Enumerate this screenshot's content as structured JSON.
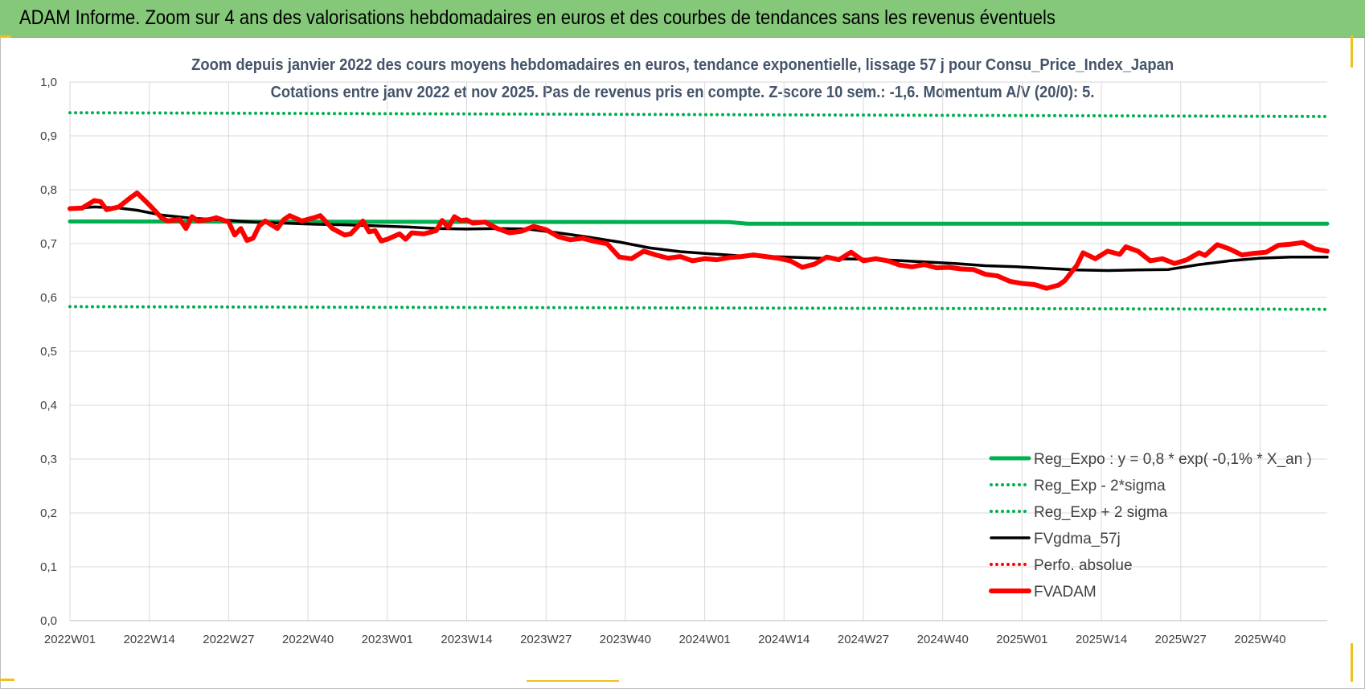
{
  "header": {
    "title": "ADAM Informe. Zoom sur 4 ans des valorisations hebdomadaires en euros et des courbes de tendances sans les revenus éventuels"
  },
  "chart_data": {
    "type": "line",
    "title": "Zoom depuis janvier 2022 des cours moyens hebdomadaires en euros, tendance exponentielle, lissage 57 j pour Consu_Price_Index_Japan",
    "subtitle": "Cotations entre janv 2022 et nov 2025. Pas de revenus pris en compte. Z-score 10 sem.: -1,6. Momentum A/V (20/0): 5.",
    "xlabel": "",
    "ylabel": "",
    "ylim": [
      0,
      1.0
    ],
    "grid": true,
    "legend_position": "right",
    "x_tick_labels": [
      "2022W01",
      "2022W14",
      "2022W27",
      "2022W40",
      "2023W01",
      "2023W14",
      "2023W27",
      "2023W40",
      "2024W01",
      "2024W14",
      "2024W27",
      "2024W40",
      "2025W01",
      "2025W14",
      "2025W27",
      "2025W40"
    ],
    "y_tick_labels": [
      "0,0",
      "0,1",
      "0,2",
      "0,3",
      "0,4",
      "0,5",
      "0,6",
      "0,7",
      "0,8",
      "0,9",
      "1,0"
    ],
    "x_weeks": 206,
    "series": [
      {
        "name": "Reg_Expo : y = 0,8 * exp( -0,1% *  X_an )",
        "color": "#00b050",
        "style": "solid-thick",
        "points": [
          [
            0,
            0.741
          ],
          [
            108,
            0.74
          ],
          [
            111,
            0.737
          ],
          [
            206,
            0.737
          ]
        ]
      },
      {
        "name": "Reg_Exp - 2*sigma",
        "color": "#00b050",
        "style": "dotted",
        "points": [
          [
            0,
            0.583
          ],
          [
            206,
            0.578
          ]
        ]
      },
      {
        "name": "Reg_Exp + 2 sigma",
        "color": "#00b050",
        "style": "dotted",
        "points": [
          [
            0,
            0.943
          ],
          [
            206,
            0.936
          ]
        ]
      },
      {
        "name": "FVgdma_57j",
        "color": "#000000",
        "style": "solid",
        "points": [
          [
            0,
            0.765
          ],
          [
            4,
            0.768
          ],
          [
            8,
            0.766
          ],
          [
            11,
            0.762
          ],
          [
            15,
            0.753
          ],
          [
            20,
            0.747
          ],
          [
            25,
            0.744
          ],
          [
            30,
            0.74
          ],
          [
            35,
            0.738
          ],
          [
            40,
            0.736
          ],
          [
            45,
            0.735
          ],
          [
            50,
            0.733
          ],
          [
            55,
            0.731
          ],
          [
            60,
            0.728
          ],
          [
            65,
            0.727
          ],
          [
            70,
            0.728
          ],
          [
            75,
            0.727
          ],
          [
            80,
            0.72
          ],
          [
            85,
            0.712
          ],
          [
            90,
            0.703
          ],
          [
            95,
            0.692
          ],
          [
            100,
            0.685
          ],
          [
            105,
            0.681
          ],
          [
            110,
            0.677
          ],
          [
            115,
            0.676
          ],
          [
            120,
            0.674
          ],
          [
            125,
            0.672
          ],
          [
            130,
            0.671
          ],
          [
            135,
            0.669
          ],
          [
            140,
            0.666
          ],
          [
            145,
            0.663
          ],
          [
            150,
            0.659
          ],
          [
            155,
            0.657
          ],
          [
            160,
            0.654
          ],
          [
            165,
            0.651
          ],
          [
            170,
            0.65
          ],
          [
            175,
            0.651
          ],
          [
            180,
            0.652
          ],
          [
            185,
            0.661
          ],
          [
            190,
            0.668
          ],
          [
            195,
            0.673
          ],
          [
            200,
            0.675
          ],
          [
            206,
            0.675
          ]
        ]
      },
      {
        "name": "Perfo. absolue",
        "color": "#ff0000",
        "style": "dotted",
        "points": []
      },
      {
        "name": "FVADAM",
        "color": "#ff0000",
        "style": "solid-thick",
        "points": [
          [
            0,
            0.765
          ],
          [
            2,
            0.766
          ],
          [
            4,
            0.78
          ],
          [
            5,
            0.778
          ],
          [
            6,
            0.763
          ],
          [
            8,
            0.768
          ],
          [
            10,
            0.786
          ],
          [
            11,
            0.794
          ],
          [
            13,
            0.772
          ],
          [
            15,
            0.748
          ],
          [
            16,
            0.742
          ],
          [
            18,
            0.745
          ],
          [
            19,
            0.728
          ],
          [
            20,
            0.75
          ],
          [
            21,
            0.742
          ],
          [
            23,
            0.745
          ],
          [
            24,
            0.748
          ],
          [
            26,
            0.74
          ],
          [
            27,
            0.716
          ],
          [
            28,
            0.728
          ],
          [
            29,
            0.706
          ],
          [
            30,
            0.71
          ],
          [
            31,
            0.733
          ],
          [
            32,
            0.742
          ],
          [
            34,
            0.728
          ],
          [
            35,
            0.744
          ],
          [
            36,
            0.752
          ],
          [
            38,
            0.742
          ],
          [
            40,
            0.748
          ],
          [
            41,
            0.752
          ],
          [
            43,
            0.728
          ],
          [
            45,
            0.716
          ],
          [
            46,
            0.718
          ],
          [
            48,
            0.742
          ],
          [
            49,
            0.722
          ],
          [
            50,
            0.724
          ],
          [
            51,
            0.705
          ],
          [
            52,
            0.708
          ],
          [
            54,
            0.718
          ],
          [
            55,
            0.708
          ],
          [
            56,
            0.72
          ],
          [
            58,
            0.718
          ],
          [
            60,
            0.724
          ],
          [
            61,
            0.743
          ],
          [
            62,
            0.73
          ],
          [
            63,
            0.75
          ],
          [
            64,
            0.743
          ],
          [
            65,
            0.744
          ],
          [
            66,
            0.738
          ],
          [
            68,
            0.74
          ],
          [
            70,
            0.728
          ],
          [
            72,
            0.72
          ],
          [
            74,
            0.723
          ],
          [
            76,
            0.732
          ],
          [
            78,
            0.726
          ],
          [
            80,
            0.713
          ],
          [
            82,
            0.707
          ],
          [
            84,
            0.71
          ],
          [
            86,
            0.704
          ],
          [
            88,
            0.7
          ],
          [
            90,
            0.675
          ],
          [
            92,
            0.672
          ],
          [
            94,
            0.686
          ],
          [
            96,
            0.679
          ],
          [
            98,
            0.673
          ],
          [
            100,
            0.676
          ],
          [
            102,
            0.668
          ],
          [
            104,
            0.672
          ],
          [
            106,
            0.67
          ],
          [
            108,
            0.674
          ],
          [
            110,
            0.676
          ],
          [
            112,
            0.679
          ],
          [
            114,
            0.676
          ],
          [
            116,
            0.673
          ],
          [
            118,
            0.668
          ],
          [
            120,
            0.656
          ],
          [
            122,
            0.662
          ],
          [
            124,
            0.675
          ],
          [
            126,
            0.67
          ],
          [
            128,
            0.684
          ],
          [
            130,
            0.668
          ],
          [
            132,
            0.672
          ],
          [
            134,
            0.668
          ],
          [
            136,
            0.66
          ],
          [
            138,
            0.657
          ],
          [
            140,
            0.661
          ],
          [
            142,
            0.655
          ],
          [
            144,
            0.656
          ],
          [
            146,
            0.653
          ],
          [
            148,
            0.652
          ],
          [
            150,
            0.643
          ],
          [
            152,
            0.64
          ],
          [
            154,
            0.63
          ],
          [
            156,
            0.626
          ],
          [
            158,
            0.624
          ],
          [
            160,
            0.617
          ],
          [
            162,
            0.623
          ],
          [
            163,
            0.631
          ],
          [
            165,
            0.66
          ],
          [
            166,
            0.683
          ],
          [
            168,
            0.672
          ],
          [
            170,
            0.686
          ],
          [
            172,
            0.68
          ],
          [
            173,
            0.694
          ],
          [
            175,
            0.686
          ],
          [
            177,
            0.668
          ],
          [
            179,
            0.672
          ],
          [
            181,
            0.663
          ],
          [
            183,
            0.67
          ],
          [
            185,
            0.683
          ],
          [
            186,
            0.678
          ],
          [
            188,
            0.698
          ],
          [
            190,
            0.69
          ],
          [
            192,
            0.679
          ],
          [
            194,
            0.682
          ],
          [
            196,
            0.684
          ],
          [
            198,
            0.697
          ],
          [
            200,
            0.699
          ],
          [
            202,
            0.702
          ],
          [
            204,
            0.69
          ],
          [
            206,
            0.686
          ]
        ]
      }
    ]
  }
}
